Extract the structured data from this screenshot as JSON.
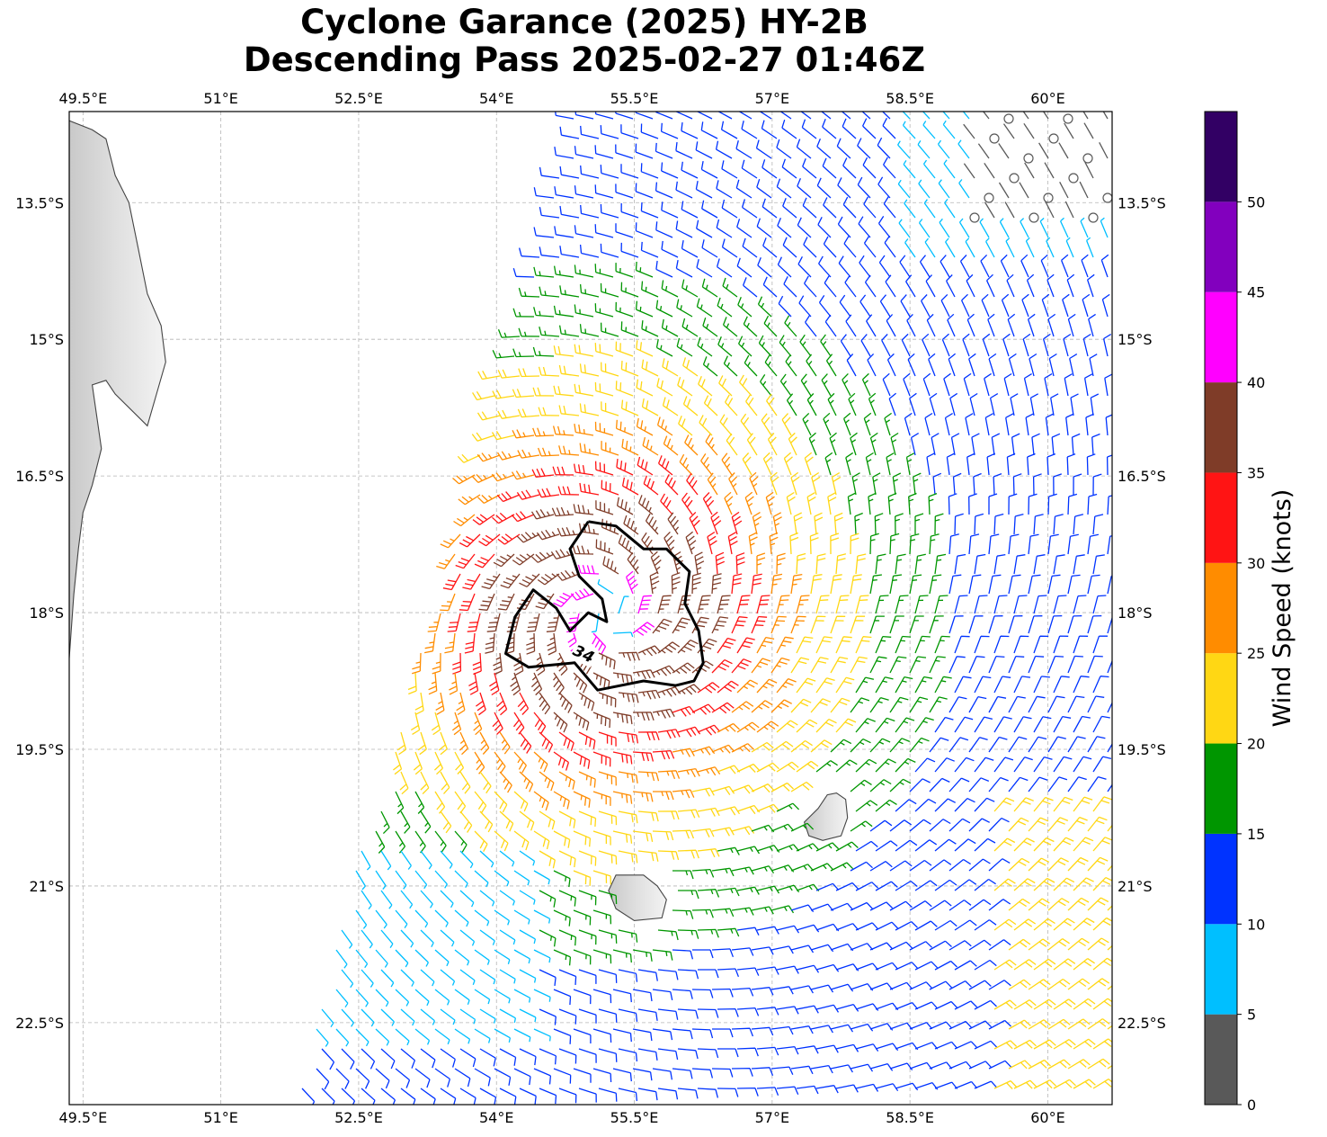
{
  "title": {
    "line1": "Cyclone Garance (2025) HY-2B",
    "line2": "Descending Pass 2025-02-27 01:46Z"
  },
  "map": {
    "lon_range": [
      49.35,
      60.7
    ],
    "lat_range": [
      -23.4,
      -12.5
    ],
    "lon_ticks": [
      {
        "value": 49.5,
        "label": "49.5°E"
      },
      {
        "value": 51.0,
        "label": "51°E"
      },
      {
        "value": 52.5,
        "label": "52.5°E"
      },
      {
        "value": 54.0,
        "label": "54°E"
      },
      {
        "value": 55.5,
        "label": "55.5°E"
      },
      {
        "value": 57.0,
        "label": "57°E"
      },
      {
        "value": 58.5,
        "label": "58.5°E"
      },
      {
        "value": 60.0,
        "label": "60°E"
      }
    ],
    "lat_ticks": [
      {
        "value": -13.5,
        "label": "13.5°S"
      },
      {
        "value": -15.0,
        "label": "15°S"
      },
      {
        "value": -16.5,
        "label": "16.5°S"
      },
      {
        "value": -18.0,
        "label": "18°S"
      },
      {
        "value": -19.5,
        "label": "19.5°S"
      },
      {
        "value": -21.0,
        "label": "21°S"
      },
      {
        "value": -22.5,
        "label": "22.5°S"
      }
    ],
    "gridlines": true,
    "storm_center": {
      "lon": 55.2,
      "lat": -18.0
    },
    "contour_label": "34",
    "contour_34kt": [
      [
        55.0,
        -17.0
      ],
      [
        55.3,
        -17.05
      ],
      [
        55.6,
        -17.3
      ],
      [
        55.85,
        -17.3
      ],
      [
        56.1,
        -17.55
      ],
      [
        56.05,
        -17.9
      ],
      [
        56.2,
        -18.2
      ],
      [
        56.25,
        -18.55
      ],
      [
        56.15,
        -18.75
      ],
      [
        55.95,
        -18.8
      ],
      [
        55.6,
        -18.75
      ],
      [
        55.1,
        -18.85
      ],
      [
        54.85,
        -18.55
      ],
      [
        54.35,
        -18.6
      ],
      [
        54.1,
        -18.45
      ],
      [
        54.2,
        -18.05
      ],
      [
        54.4,
        -17.75
      ],
      [
        54.65,
        -17.95
      ],
      [
        54.8,
        -18.2
      ],
      [
        55.0,
        -18.0
      ],
      [
        55.2,
        -18.1
      ],
      [
        55.15,
        -17.85
      ],
      [
        54.9,
        -17.6
      ],
      [
        54.8,
        -17.3
      ],
      [
        55.0,
        -17.0
      ]
    ],
    "land": {
      "madagascar": [
        [
          49.35,
          -12.6
        ],
        [
          49.6,
          -12.7
        ],
        [
          49.75,
          -12.8
        ],
        [
          49.85,
          -13.2
        ],
        [
          50.0,
          -13.5
        ],
        [
          50.1,
          -14.0
        ],
        [
          50.2,
          -14.5
        ],
        [
          50.35,
          -14.85
        ],
        [
          50.4,
          -15.25
        ],
        [
          50.3,
          -15.6
        ],
        [
          50.2,
          -15.95
        ],
        [
          49.85,
          -15.6
        ],
        [
          49.75,
          -15.45
        ],
        [
          49.6,
          -15.5
        ],
        [
          49.65,
          -15.85
        ],
        [
          49.7,
          -16.2
        ],
        [
          49.6,
          -16.6
        ],
        [
          49.5,
          -16.9
        ],
        [
          49.45,
          -17.3
        ],
        [
          49.4,
          -17.8
        ],
        [
          49.35,
          -18.5
        ],
        [
          49.35,
          -12.6
        ]
      ],
      "mauritius": [
        [
          57.7,
          -19.98
        ],
        [
          57.8,
          -20.05
        ],
        [
          57.82,
          -20.25
        ],
        [
          57.75,
          -20.45
        ],
        [
          57.55,
          -20.5
        ],
        [
          57.4,
          -20.45
        ],
        [
          57.35,
          -20.3
        ],
        [
          57.5,
          -20.15
        ],
        [
          57.6,
          -20.0
        ],
        [
          57.7,
          -19.98
        ]
      ],
      "reunion": [
        [
          55.3,
          -20.88
        ],
        [
          55.6,
          -20.88
        ],
        [
          55.75,
          -21.0
        ],
        [
          55.85,
          -21.15
        ],
        [
          55.8,
          -21.35
        ],
        [
          55.5,
          -21.38
        ],
        [
          55.3,
          -21.25
        ],
        [
          55.22,
          -21.05
        ],
        [
          55.3,
          -20.88
        ]
      ]
    }
  },
  "colorbar": {
    "label": "Wind Speed (knots)",
    "bins": [
      {
        "from": 0,
        "to": 5,
        "color": "#595959"
      },
      {
        "from": 5,
        "to": 10,
        "color": "#00bfff"
      },
      {
        "from": 10,
        "to": 15,
        "color": "#0033ff"
      },
      {
        "from": 15,
        "to": 20,
        "color": "#009600"
      },
      {
        "from": 20,
        "to": 25,
        "color": "#ffd714"
      },
      {
        "from": 25,
        "to": 30,
        "color": "#ff8c00"
      },
      {
        "from": 30,
        "to": 35,
        "color": "#ff1414"
      },
      {
        "from": 35,
        "to": 40,
        "color": "#7f3c28"
      },
      {
        "from": 40,
        "to": 45,
        "color": "#ff00ff"
      },
      {
        "from": 45,
        "to": 50,
        "color": "#8200be"
      },
      {
        "from": 50,
        "to": 55,
        "color": "#320064"
      }
    ],
    "ticks": [
      {
        "value": 0,
        "label": "0"
      },
      {
        "value": 5,
        "label": "5"
      },
      {
        "value": 10,
        "label": "10"
      },
      {
        "value": 15,
        "label": "15"
      },
      {
        "value": 20,
        "label": "20"
      },
      {
        "value": 25,
        "label": "25"
      },
      {
        "value": 30,
        "label": "30"
      },
      {
        "value": 35,
        "label": "35"
      },
      {
        "value": 40,
        "label": "40"
      },
      {
        "value": 45,
        "label": "45"
      },
      {
        "value": 50,
        "label": "50"
      }
    ]
  }
}
